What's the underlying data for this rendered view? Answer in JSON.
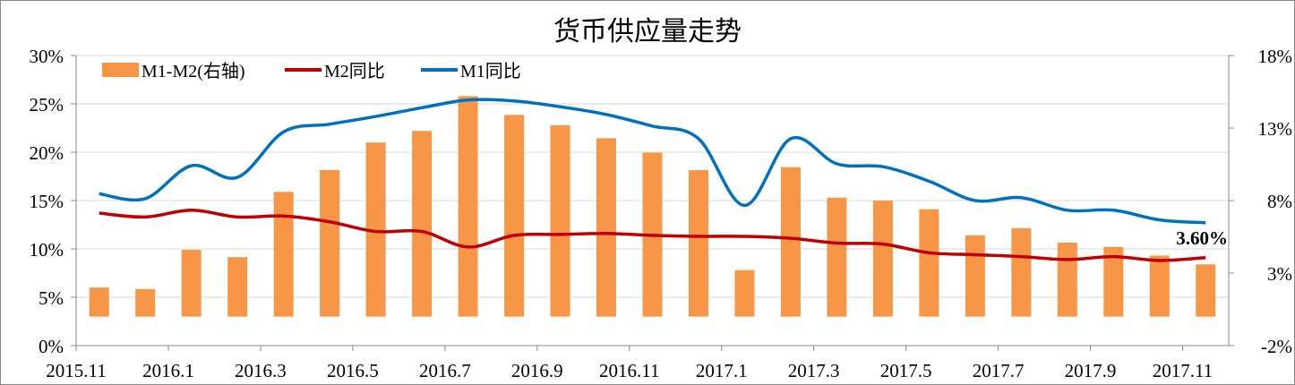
{
  "chart_data": {
    "type": "bar+line",
    "title": "货币供应量走势",
    "categories": [
      "2015.11",
      "2015.12",
      "2016.1",
      "2016.2",
      "2016.3",
      "2016.4",
      "2016.5",
      "2016.6",
      "2016.7",
      "2016.8",
      "2016.9",
      "2016.10",
      "2016.11",
      "2016.12",
      "2017.1",
      "2017.2",
      "2017.3",
      "2017.4",
      "2017.5",
      "2017.6",
      "2017.7",
      "2017.8",
      "2017.9",
      "2017.10",
      "2017.11"
    ],
    "x_tick_labels": [
      "2015.11",
      "2016.1",
      "2016.3",
      "2016.5",
      "2016.7",
      "2016.9",
      "2016.11",
      "2017.1",
      "2017.3",
      "2017.5",
      "2017.7",
      "2017.9",
      "2017.11"
    ],
    "left_axis": {
      "ylim": [
        0,
        30
      ],
      "ticks": [
        "0%",
        "5%",
        "10%",
        "15%",
        "20%",
        "25%",
        "30%"
      ]
    },
    "right_axis": {
      "ylim": [
        -2,
        18
      ],
      "ticks": [
        "-2%",
        "3%",
        "8%",
        "13%",
        "18%"
      ]
    },
    "grid": "horizontal",
    "legend_placement": "top-left",
    "series": [
      {
        "name": "M1-M2(右轴)",
        "type": "bar",
        "axis": "right",
        "color": "#F79646",
        "values": [
          2.0,
          1.9,
          4.6,
          4.1,
          8.6,
          10.1,
          12.0,
          12.8,
          15.2,
          13.9,
          13.2,
          12.3,
          11.3,
          10.1,
          3.2,
          10.3,
          8.2,
          8.0,
          7.4,
          5.6,
          6.1,
          5.1,
          4.8,
          4.2,
          3.6
        ]
      },
      {
        "name": "M2同比",
        "type": "line",
        "axis": "left",
        "color": "#C00000",
        "values": [
          13.7,
          13.3,
          14.0,
          13.3,
          13.4,
          12.8,
          11.8,
          11.8,
          10.2,
          11.4,
          11.5,
          11.6,
          11.4,
          11.3,
          11.3,
          11.1,
          10.6,
          10.5,
          9.6,
          9.4,
          9.2,
          8.9,
          9.2,
          8.8,
          9.1
        ]
      },
      {
        "name": "M1同比",
        "type": "line",
        "axis": "left",
        "color": "#0070C0",
        "values": [
          15.7,
          15.2,
          18.6,
          17.4,
          22.1,
          22.9,
          23.7,
          24.6,
          25.4,
          25.3,
          24.7,
          23.9,
          22.7,
          21.4,
          14.5,
          21.4,
          18.8,
          18.5,
          17.0,
          15.0,
          15.3,
          14.0,
          14.0,
          13.0,
          12.7
        ]
      }
    ],
    "annotations": [
      {
        "text": "3.60%",
        "color": "#F79646",
        "category": "2017.11"
      }
    ]
  }
}
